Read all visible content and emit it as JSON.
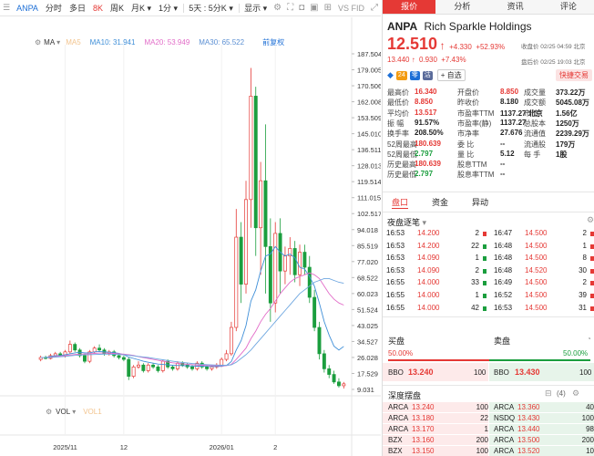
{
  "toolbar": {
    "symbol": "ANPA",
    "items": [
      "分时",
      "多日",
      "8K",
      "周K",
      "月K ▾",
      "1分 ▾",
      "5天 : 5分K ▾",
      "显示 ▾"
    ],
    "vs_label": "VS FID"
  },
  "ma_bar": {
    "ma": "MA",
    "ma5": "MA5",
    "ma10": "MA10: 31.941",
    "ma20": "MA20: 53.949",
    "ma30": "MA30: 65.522",
    "adjust": "前复权"
  },
  "vol_bar": {
    "vol": "VOL",
    "vol1": "VOL1"
  },
  "colors": {
    "up": "#e53935",
    "down": "#1b9e3e",
    "ma10": "#3f8fd8",
    "ma20": "#e26cc8",
    "ma30": "#6fa7e0",
    "accent": "#e53935"
  },
  "price_axis": [
    "187.504",
    "179.005",
    "170.506",
    "162.008",
    "153.509",
    "145.010",
    "136.511",
    "128.013",
    "119.514",
    "111.015",
    "102.517",
    "94.018",
    "85.519",
    "77.020",
    "68.522",
    "60.023",
    "51.524",
    "43.025",
    "34.527",
    "26.028",
    "17.529",
    "9.031"
  ],
  "date_axis": [
    "2025/11",
    "12",
    "2026/01",
    "2"
  ],
  "chart_data": {
    "type": "candlestick",
    "ylim": [
      9.031,
      187.504
    ],
    "x": [
      "2025/11",
      "12",
      "2026/01",
      "2"
    ],
    "series_note": "",
    "candles": [
      [
        25,
        27,
        24,
        26
      ],
      [
        26,
        27,
        25,
        25.5
      ],
      [
        25.5,
        28,
        25,
        27
      ],
      [
        27,
        29,
        26,
        28
      ],
      [
        28,
        29,
        26.5,
        27
      ],
      [
        27,
        30,
        26,
        29
      ],
      [
        29,
        35,
        28,
        33
      ],
      [
        33,
        34,
        29,
        30
      ],
      [
        30,
        31,
        26,
        27
      ],
      [
        27,
        28,
        23,
        24
      ],
      [
        24,
        30,
        23,
        29
      ],
      [
        29,
        32,
        28,
        31
      ],
      [
        31,
        33,
        29,
        30
      ],
      [
        30,
        31,
        27,
        28
      ],
      [
        28,
        30,
        27,
        29
      ],
      [
        29,
        30,
        26,
        27
      ],
      [
        27,
        28,
        25,
        26
      ],
      [
        26,
        27,
        24,
        25
      ],
      [
        25,
        26,
        14,
        16
      ],
      [
        16,
        22,
        15,
        21
      ],
      [
        21,
        24,
        20,
        22
      ],
      [
        22,
        23,
        18,
        19
      ],
      [
        19,
        23,
        18,
        22
      ],
      [
        22,
        23,
        20,
        21
      ],
      [
        21,
        22,
        18,
        19
      ],
      [
        19,
        25,
        18,
        24
      ],
      [
        24,
        25,
        20,
        21
      ],
      [
        21,
        22,
        19,
        20
      ],
      [
        20,
        24,
        19,
        23
      ],
      [
        23,
        24,
        21,
        22
      ],
      [
        22,
        23,
        20,
        21
      ],
      [
        21,
        22,
        19,
        20
      ],
      [
        20,
        24,
        19,
        23
      ],
      [
        23,
        24,
        20,
        21
      ],
      [
        21,
        22,
        19,
        20
      ],
      [
        20,
        22,
        19,
        21
      ],
      [
        21,
        23,
        20,
        22
      ],
      [
        22,
        26,
        21,
        25
      ],
      [
        25,
        30,
        24,
        28
      ],
      [
        28,
        45,
        27,
        42
      ],
      [
        42,
        105,
        40,
        90
      ],
      [
        90,
        98,
        55,
        65
      ],
      [
        65,
        120,
        60,
        110
      ],
      [
        110,
        180,
        95,
        165
      ],
      [
        165,
        170,
        80,
        95
      ],
      [
        95,
        130,
        70,
        120
      ],
      [
        120,
        150,
        60,
        85
      ],
      [
        85,
        100,
        45,
        55
      ],
      [
        55,
        98,
        50,
        92
      ],
      [
        92,
        100,
        60,
        72
      ],
      [
        72,
        85,
        65,
        80
      ],
      [
        80,
        90,
        70,
        84
      ],
      [
        84,
        88,
        66,
        70
      ],
      [
        70,
        86,
        64,
        82
      ],
      [
        82,
        86,
        70,
        74
      ],
      [
        74,
        80,
        55,
        58
      ],
      [
        58,
        62,
        40,
        42
      ],
      [
        42,
        45,
        25,
        28
      ],
      [
        28,
        30,
        18,
        20
      ],
      [
        20,
        22,
        15,
        17
      ],
      [
        17,
        19,
        12,
        13
      ],
      [
        13,
        15,
        10,
        11
      ],
      [
        11,
        13,
        9.5,
        12
      ]
    ],
    "ma_series": [
      {
        "name": "MA10",
        "values": [
          26,
          26,
          26.5,
          27,
          27,
          27.5,
          28,
          28.5,
          28.8,
          28.5,
          28.5,
          29,
          29.2,
          29,
          28.8,
          28.6,
          28.2,
          27.5,
          26.2,
          25.5,
          24.8,
          24,
          23.5,
          23,
          22.5,
          22.3,
          22.1,
          21.9,
          21.8,
          21.7,
          21.6,
          21.5,
          21.4,
          21.4,
          21.3,
          21.2,
          21.2,
          21.3,
          21.8,
          23.8,
          30,
          35,
          43,
          56,
          62,
          72,
          80,
          81,
          85,
          82,
          80,
          81,
          79,
          74,
          73,
          69,
          64,
          55,
          45,
          38,
          32,
          30,
          31.9
        ]
      },
      {
        "name": "MA20",
        "values": [
          26,
          26,
          26.2,
          26.5,
          26.8,
          27,
          27.3,
          27.6,
          27.8,
          27.9,
          28,
          28.2,
          28.4,
          28.4,
          28.3,
          28.2,
          28,
          27.8,
          27.5,
          27.1,
          26.5,
          26,
          25.5,
          25,
          24.5,
          24,
          23.6,
          23.2,
          22.9,
          22.6,
          22.4,
          22.2,
          22,
          21.9,
          21.8,
          21.7,
          21.6,
          21.6,
          21.7,
          22.3,
          25,
          28,
          31,
          36,
          40,
          45,
          49,
          52,
          56,
          60,
          63,
          66,
          68,
          69,
          70,
          71,
          70,
          68,
          64,
          60,
          57,
          55,
          53.9
        ]
      },
      {
        "name": "MA30",
        "values": [
          26,
          26,
          26,
          26.2,
          26.4,
          26.6,
          26.9,
          27.1,
          27.3,
          27.4,
          27.5,
          27.6,
          27.7,
          27.8,
          27.8,
          27.7,
          27.6,
          27.4,
          27.2,
          26.9,
          26.6,
          26.3,
          26,
          25.6,
          25.2,
          24.8,
          24.4,
          24,
          23.7,
          23.4,
          23.1,
          22.8,
          22.6,
          22.4,
          22.2,
          22.1,
          22,
          21.9,
          21.9,
          22.1,
          23.5,
          25.5,
          27.5,
          30,
          33,
          36,
          39,
          42,
          45,
          48,
          51,
          54,
          57,
          60,
          62,
          64,
          66,
          67,
          68,
          68,
          67,
          66,
          65.5
        ]
      }
    ]
  },
  "panel": {
    "tabs": [
      "报价",
      "分析",
      "资讯",
      "评论"
    ],
    "symbol": "ANPA",
    "name": "Rich Sparkle Holdings",
    "price": "12.510",
    "arrow": "↑",
    "change": "+4.330",
    "change_pct": "+52.93%",
    "close_note": "收盘价 02/25 04:59 北京",
    "after_price": "13.440",
    "after_arrow": "↑",
    "after_change": "0.930",
    "after_pct": "+7.43%",
    "after_note": "盘后价 02/25 19:03 北京",
    "tags": [
      "24",
      "零",
      "沽"
    ],
    "self_select": "+ 自选",
    "quick_trade": "快捷交易",
    "stats": [
      [
        [
          "最高价",
          "16.340",
          "red"
        ],
        [
          "开盘价",
          "8.850",
          "red"
        ],
        [
          "成交量",
          "373.22万",
          ""
        ]
      ],
      [
        [
          "最低价",
          "8.850",
          "red"
        ],
        [
          "昨收价",
          "8.180",
          ""
        ],
        [
          "成交额",
          "5045.08万",
          ""
        ]
      ],
      [
        [
          "平均价",
          "13.517",
          "red"
        ],
        [
          "市盈率TTM",
          "1137.27 北京",
          ""
        ],
        [
          "市值",
          "1.56亿",
          ""
        ]
      ],
      [
        [
          "振 幅",
          "91.57%",
          ""
        ],
        [
          "市盈率(静)",
          "1137.27",
          ""
        ],
        [
          "总股本",
          "1250万",
          ""
        ]
      ],
      [
        [
          "换手率",
          "208.50%",
          ""
        ],
        [
          "市净率",
          "27.676",
          ""
        ],
        [
          "流通值",
          "2239.29万",
          ""
        ]
      ],
      [
        [
          "52周最高",
          "180.639",
          "red"
        ],
        [
          "委 比",
          "--",
          ""
        ],
        [
          "流通股",
          "179万",
          ""
        ]
      ],
      [
        [
          "52周最低",
          "2.797",
          "green"
        ],
        [
          "量 比",
          "5.12",
          ""
        ],
        [
          "每 手",
          "1股",
          ""
        ]
      ],
      [
        [
          "历史最高",
          "180.639",
          "red"
        ],
        [
          "股息TTM",
          "--",
          ""
        ],
        [
          "",
          "",
          ""
        ]
      ],
      [
        [
          "历史最低",
          "2.797",
          "green"
        ],
        [
          "股息率TTM",
          "--",
          ""
        ],
        [
          "",
          "",
          ""
        ]
      ]
    ],
    "subtabs": [
      "盘口",
      "资金",
      "异动"
    ],
    "ticks_title": "夜盘逐笔",
    "ticks_left": [
      [
        "16:53",
        "14.200",
        "2",
        "red"
      ],
      [
        "16:53",
        "14.200",
        "22",
        "green"
      ],
      [
        "16:53",
        "14.090",
        "1",
        "green"
      ],
      [
        "16:53",
        "14.090",
        "2",
        "green"
      ],
      [
        "16:55",
        "14.000",
        "33",
        "green"
      ],
      [
        "16:55",
        "14.000",
        "1",
        "green"
      ],
      [
        "16:55",
        "14.000",
        "42",
        "green"
      ]
    ],
    "ticks_right": [
      [
        "16:47",
        "14.500",
        "2",
        "red"
      ],
      [
        "16:48",
        "14.500",
        "1",
        "red"
      ],
      [
        "16:48",
        "14.500",
        "8",
        "red"
      ],
      [
        "16:48",
        "14.520",
        "30",
        "red"
      ],
      [
        "16:49",
        "14.500",
        "2",
        "red"
      ],
      [
        "16:52",
        "14.500",
        "39",
        "red"
      ],
      [
        "16:53",
        "14.500",
        "31",
        "red"
      ]
    ],
    "buy_label": "买盘",
    "sell_label": "卖盘",
    "buy_pct": "50.00%",
    "sell_pct": "50.00%",
    "bbo_buy_label": "BBO",
    "bbo_buy_price": "13.240",
    "bbo_buy_size": "100",
    "bbo_sell_label": "BBO",
    "bbo_sell_price": "13.430",
    "bbo_sell_size": "100",
    "depth_title": "深度摆盘",
    "depth_count": "(4)",
    "depth_left": [
      [
        "ARCA",
        "13.240",
        "100"
      ],
      [
        "ARCA",
        "13.180",
        "22"
      ],
      [
        "ARCA",
        "13.170",
        "1"
      ],
      [
        "BZX",
        "13.160",
        "200"
      ],
      [
        "BZX",
        "13.150",
        "100"
      ]
    ],
    "depth_right": [
      [
        "ARCA",
        "13.360",
        "40"
      ],
      [
        "NSDQ",
        "13.430",
        "100"
      ],
      [
        "ARCA",
        "13.440",
        "98"
      ],
      [
        "ARCA",
        "13.500",
        "200"
      ],
      [
        "ARCA",
        "13.520",
        "10"
      ]
    ]
  }
}
